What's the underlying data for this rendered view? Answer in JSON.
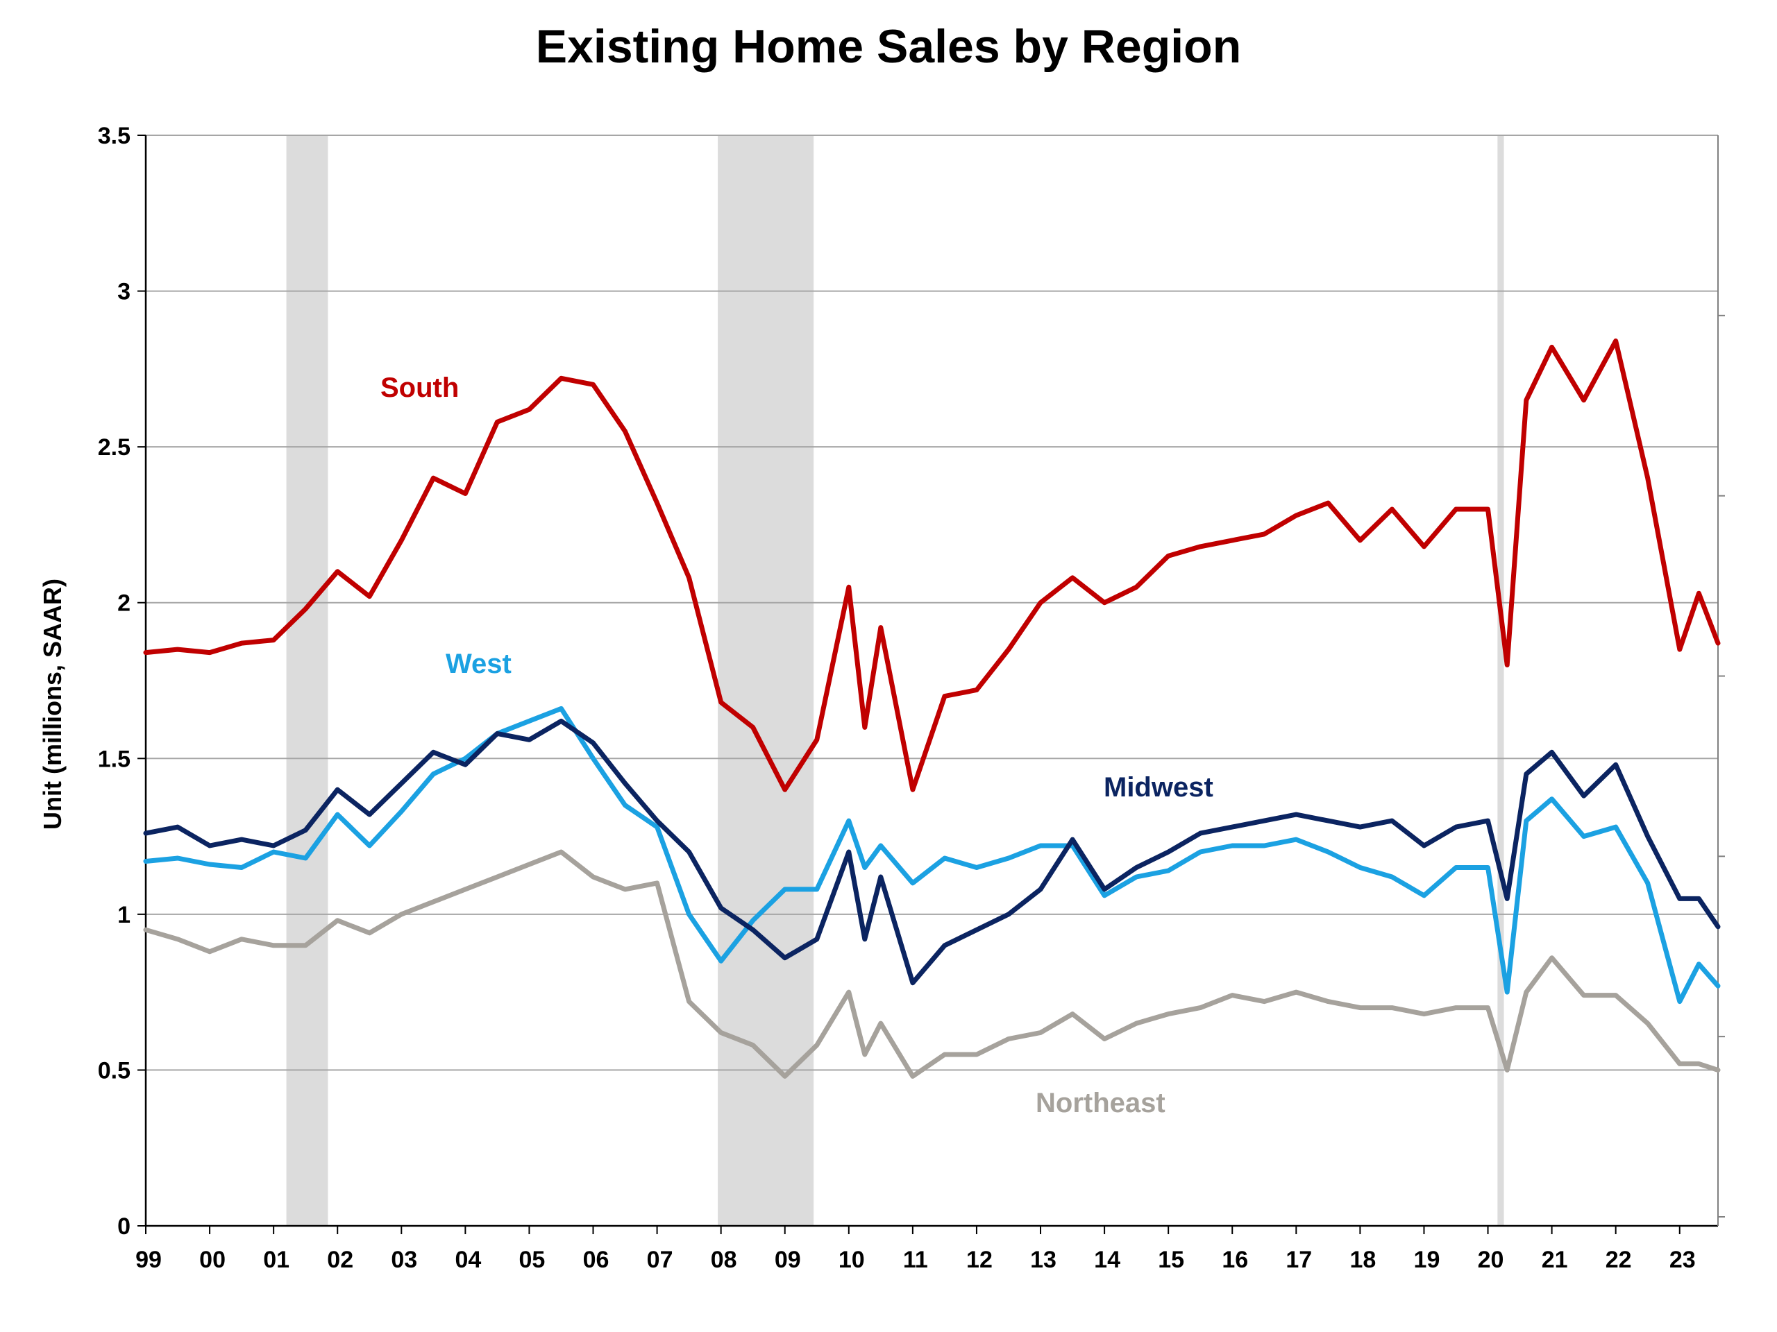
{
  "chart_data": {
    "type": "line",
    "title": "Existing Home Sales by Region",
    "xlabel": "",
    "ylabel": "Unit (millions, SAAR)",
    "x_ticks": [
      "99",
      "00",
      "01",
      "02",
      "03",
      "04",
      "05",
      "06",
      "07",
      "08",
      "09",
      "10",
      "11",
      "12",
      "13",
      "14",
      "15",
      "16",
      "17",
      "18",
      "19",
      "20",
      "21",
      "22",
      "23"
    ],
    "y_ticks": [
      "0",
      "0.5",
      "1",
      "1.5",
      "2",
      "2.5",
      "3",
      "3.5"
    ],
    "xlim": [
      1999.0,
      2023.6
    ],
    "ylim": [
      0,
      3.5
    ],
    "grid": true,
    "recession_shading": [
      [
        2001.2,
        2001.85
      ],
      [
        2007.95,
        2009.45
      ],
      [
        2020.15,
        2020.25
      ]
    ],
    "colors": {
      "South": "#C00000",
      "West": "#1BA1E2",
      "Midwest": "#0B2461",
      "Northeast": "#A6A29C",
      "recession": "#DCDCDC",
      "grid": "#A6A6A6"
    },
    "series": [
      {
        "name": "South",
        "x": [
          1999.0,
          1999.5,
          2000.0,
          2000.5,
          2001.0,
          2001.5,
          2002.0,
          2002.5,
          2003.0,
          2003.5,
          2004.0,
          2004.5,
          2005.0,
          2005.5,
          2006.0,
          2006.5,
          2007.0,
          2007.5,
          2008.0,
          2008.5,
          2009.0,
          2009.5,
          2010.0,
          2010.25,
          2010.5,
          2011.0,
          2011.5,
          2012.0,
          2012.5,
          2013.0,
          2013.5,
          2014.0,
          2014.5,
          2015.0,
          2015.5,
          2016.0,
          2016.5,
          2017.0,
          2017.5,
          2018.0,
          2018.5,
          2019.0,
          2019.5,
          2020.0,
          2020.3,
          2020.6,
          2021.0,
          2021.5,
          2022.0,
          2022.5,
          2023.0,
          2023.3,
          2023.6
        ],
        "values": [
          1.84,
          1.85,
          1.84,
          1.87,
          1.88,
          1.98,
          2.1,
          2.02,
          2.2,
          2.4,
          2.35,
          2.58,
          2.62,
          2.72,
          2.7,
          2.55,
          2.32,
          2.08,
          1.68,
          1.6,
          1.4,
          1.56,
          2.05,
          1.6,
          1.92,
          1.4,
          1.7,
          1.72,
          1.85,
          2.0,
          2.08,
          2.0,
          2.05,
          2.15,
          2.18,
          2.2,
          2.22,
          2.28,
          2.32,
          2.2,
          2.3,
          2.18,
          2.3,
          2.3,
          1.8,
          2.65,
          2.82,
          2.65,
          2.84,
          2.4,
          1.85,
          2.03,
          1.87
        ]
      },
      {
        "name": "West",
        "x": [
          1999.0,
          1999.5,
          2000.0,
          2000.5,
          2001.0,
          2001.5,
          2002.0,
          2002.5,
          2003.0,
          2003.5,
          2004.0,
          2004.5,
          2005.0,
          2005.5,
          2006.0,
          2006.5,
          2007.0,
          2007.5,
          2008.0,
          2008.5,
          2009.0,
          2009.5,
          2010.0,
          2010.25,
          2010.5,
          2011.0,
          2011.5,
          2012.0,
          2012.5,
          2013.0,
          2013.5,
          2014.0,
          2014.5,
          2015.0,
          2015.5,
          2016.0,
          2016.5,
          2017.0,
          2017.5,
          2018.0,
          2018.5,
          2019.0,
          2019.5,
          2020.0,
          2020.3,
          2020.6,
          2021.0,
          2021.5,
          2022.0,
          2022.5,
          2023.0,
          2023.3,
          2023.6
        ],
        "values": [
          1.17,
          1.18,
          1.16,
          1.15,
          1.2,
          1.18,
          1.32,
          1.22,
          1.33,
          1.45,
          1.5,
          1.58,
          1.62,
          1.66,
          1.5,
          1.35,
          1.28,
          1.0,
          0.85,
          0.98,
          1.08,
          1.08,
          1.3,
          1.15,
          1.22,
          1.1,
          1.18,
          1.15,
          1.18,
          1.22,
          1.22,
          1.06,
          1.12,
          1.14,
          1.2,
          1.22,
          1.22,
          1.24,
          1.2,
          1.15,
          1.12,
          1.06,
          1.15,
          1.15,
          0.75,
          1.3,
          1.37,
          1.25,
          1.28,
          1.1,
          0.72,
          0.84,
          0.77
        ]
      },
      {
        "name": "Midwest",
        "x": [
          1999.0,
          1999.5,
          2000.0,
          2000.5,
          2001.0,
          2001.5,
          2002.0,
          2002.5,
          2003.0,
          2003.5,
          2004.0,
          2004.5,
          2005.0,
          2005.5,
          2006.0,
          2006.5,
          2007.0,
          2007.5,
          2008.0,
          2008.5,
          2009.0,
          2009.5,
          2010.0,
          2010.25,
          2010.5,
          2011.0,
          2011.5,
          2012.0,
          2012.5,
          2013.0,
          2013.5,
          2014.0,
          2014.5,
          2015.0,
          2015.5,
          2016.0,
          2016.5,
          2017.0,
          2017.5,
          2018.0,
          2018.5,
          2019.0,
          2019.5,
          2020.0,
          2020.3,
          2020.6,
          2021.0,
          2021.5,
          2022.0,
          2022.5,
          2023.0,
          2023.3,
          2023.6
        ],
        "values": [
          1.26,
          1.28,
          1.22,
          1.24,
          1.22,
          1.27,
          1.4,
          1.32,
          1.42,
          1.52,
          1.48,
          1.58,
          1.56,
          1.62,
          1.55,
          1.42,
          1.3,
          1.2,
          1.02,
          0.95,
          0.86,
          0.92,
          1.2,
          0.92,
          1.12,
          0.78,
          0.9,
          0.95,
          1.0,
          1.08,
          1.24,
          1.08,
          1.15,
          1.2,
          1.26,
          1.28,
          1.3,
          1.32,
          1.3,
          1.28,
          1.3,
          1.22,
          1.28,
          1.3,
          1.05,
          1.45,
          1.52,
          1.38,
          1.48,
          1.25,
          1.05,
          1.05,
          0.96
        ]
      },
      {
        "name": "Northeast",
        "x": [
          1999.0,
          1999.5,
          2000.0,
          2000.5,
          2001.0,
          2001.5,
          2002.0,
          2002.5,
          2003.0,
          2003.5,
          2004.0,
          2004.5,
          2005.0,
          2005.5,
          2006.0,
          2006.5,
          2007.0,
          2007.5,
          2008.0,
          2008.5,
          2009.0,
          2009.5,
          2010.0,
          2010.25,
          2010.5,
          2011.0,
          2011.5,
          2012.0,
          2012.5,
          2013.0,
          2013.5,
          2014.0,
          2014.5,
          2015.0,
          2015.5,
          2016.0,
          2016.5,
          2017.0,
          2017.5,
          2018.0,
          2018.5,
          2019.0,
          2019.5,
          2020.0,
          2020.3,
          2020.6,
          2021.0,
          2021.5,
          2022.0,
          2022.5,
          2023.0,
          2023.3,
          2023.6
        ],
        "values": [
          0.95,
          0.92,
          0.88,
          0.92,
          0.9,
          0.9,
          0.98,
          0.94,
          1.0,
          1.04,
          1.08,
          1.12,
          1.16,
          1.2,
          1.12,
          1.08,
          1.1,
          0.72,
          0.62,
          0.58,
          0.48,
          0.58,
          0.75,
          0.55,
          0.65,
          0.48,
          0.55,
          0.55,
          0.6,
          0.62,
          0.68,
          0.6,
          0.65,
          0.68,
          0.7,
          0.74,
          0.72,
          0.75,
          0.72,
          0.7,
          0.7,
          0.68,
          0.7,
          0.7,
          0.5,
          0.75,
          0.86,
          0.74,
          0.74,
          0.65,
          0.52,
          0.52,
          0.5
        ]
      }
    ],
    "annotations": [
      {
        "text": "South",
        "series": "South"
      },
      {
        "text": "West",
        "series": "West"
      },
      {
        "text": "Midwest",
        "series": "Midwest"
      },
      {
        "text": "Northeast",
        "series": "Northeast"
      }
    ]
  }
}
